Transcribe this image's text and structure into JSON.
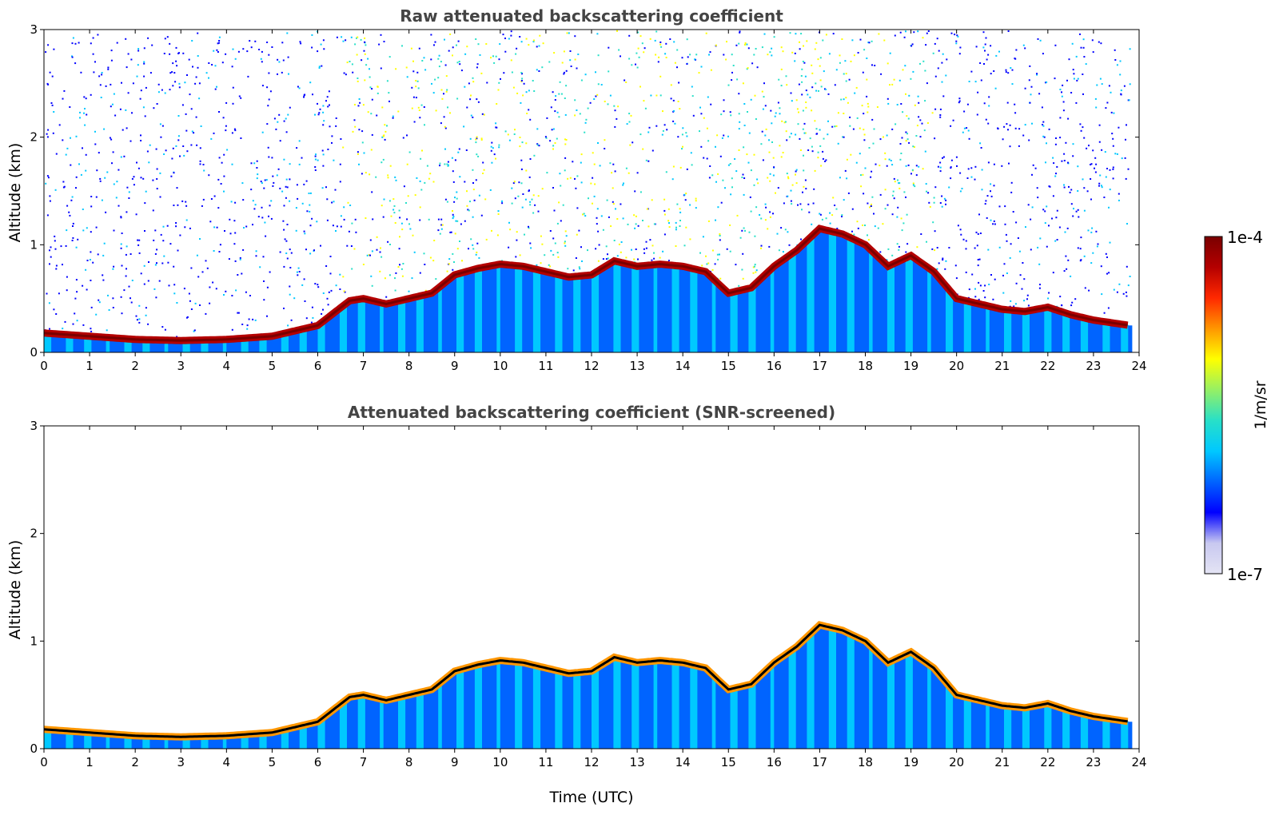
{
  "colorbar": {
    "label": "1/m/sr",
    "max_label": "1e-4",
    "min_label": "1e-7",
    "scale": "log",
    "colormap": "jet",
    "colors": [
      "#e4e4f4",
      "#c8c8f0",
      "#0000ff",
      "#0064ff",
      "#00c8ff",
      "#28e0c8",
      "#96f064",
      "#ffff00",
      "#ff9600",
      "#ff2800",
      "#b40000",
      "#7a0000"
    ]
  },
  "chart_data": [
    {
      "type": "heatmap",
      "title": "Raw attenuated backscattering coefficient",
      "xlabel": "",
      "ylabel": "Altitude (km)",
      "xlim": [
        0,
        24
      ],
      "ylim": [
        0,
        3
      ],
      "xticks": [
        "0",
        "1",
        "2",
        "3",
        "4",
        "5",
        "6",
        "7",
        "8",
        "9",
        "10",
        "11",
        "12",
        "13",
        "14",
        "15",
        "16",
        "17",
        "18",
        "19",
        "20",
        "21",
        "22",
        "23",
        "24"
      ],
      "yticks": [
        "0",
        "1",
        "2",
        "3"
      ],
      "layer_top_km": {
        "x": [
          0,
          1,
          2,
          3,
          4,
          5,
          6,
          6.7,
          7,
          7.5,
          8,
          8.5,
          9,
          9.5,
          10,
          10.5,
          11,
          11.5,
          12,
          12.5,
          13,
          13.5,
          14,
          14.5,
          15,
          15.5,
          16,
          16.5,
          17,
          17.5,
          18,
          18.5,
          19,
          19.5,
          20,
          20.5,
          21,
          21.5,
          22,
          22.5,
          23,
          23.8
        ],
        "y": [
          0.18,
          0.15,
          0.12,
          0.11,
          0.12,
          0.15,
          0.25,
          0.48,
          0.5,
          0.45,
          0.5,
          0.55,
          0.72,
          0.78,
          0.82,
          0.8,
          0.75,
          0.7,
          0.72,
          0.85,
          0.8,
          0.82,
          0.8,
          0.75,
          0.55,
          0.6,
          0.8,
          0.95,
          1.15,
          1.1,
          1.0,
          0.8,
          0.9,
          0.75,
          0.5,
          0.45,
          0.4,
          0.38,
          0.42,
          0.35,
          0.3,
          0.25
        ]
      },
      "raw_noise": true
    },
    {
      "type": "heatmap",
      "title": "Attenuated backscattering coefficient (SNR-screened)",
      "xlabel": "Time (UTC)",
      "ylabel": "Altitude (km)",
      "xlim": [
        0,
        24
      ],
      "ylim": [
        0,
        3
      ],
      "xticks": [
        "0",
        "1",
        "2",
        "3",
        "4",
        "5",
        "6",
        "7",
        "8",
        "9",
        "10",
        "11",
        "12",
        "13",
        "14",
        "15",
        "16",
        "17",
        "18",
        "19",
        "20",
        "21",
        "22",
        "23",
        "24"
      ],
      "yticks": [
        "0",
        "1",
        "2",
        "3"
      ],
      "layer_top_km": {
        "x": [
          0,
          1,
          2,
          3,
          4,
          5,
          6,
          6.7,
          7,
          7.5,
          8,
          8.5,
          9,
          9.5,
          10,
          10.5,
          11,
          11.5,
          12,
          12.5,
          13,
          13.5,
          14,
          14.5,
          15,
          15.5,
          16,
          16.5,
          17,
          17.5,
          18,
          18.5,
          19,
          19.5,
          20,
          20.5,
          21,
          21.5,
          22,
          22.5,
          23,
          23.8
        ],
        "y": [
          0.18,
          0.15,
          0.12,
          0.11,
          0.12,
          0.15,
          0.25,
          0.48,
          0.5,
          0.45,
          0.5,
          0.55,
          0.72,
          0.78,
          0.82,
          0.8,
          0.75,
          0.7,
          0.72,
          0.85,
          0.8,
          0.82,
          0.8,
          0.75,
          0.55,
          0.6,
          0.8,
          0.95,
          1.15,
          1.1,
          1.0,
          0.8,
          0.9,
          0.75,
          0.5,
          0.45,
          0.4,
          0.38,
          0.42,
          0.35,
          0.3,
          0.25
        ]
      },
      "raw_noise": false
    }
  ]
}
